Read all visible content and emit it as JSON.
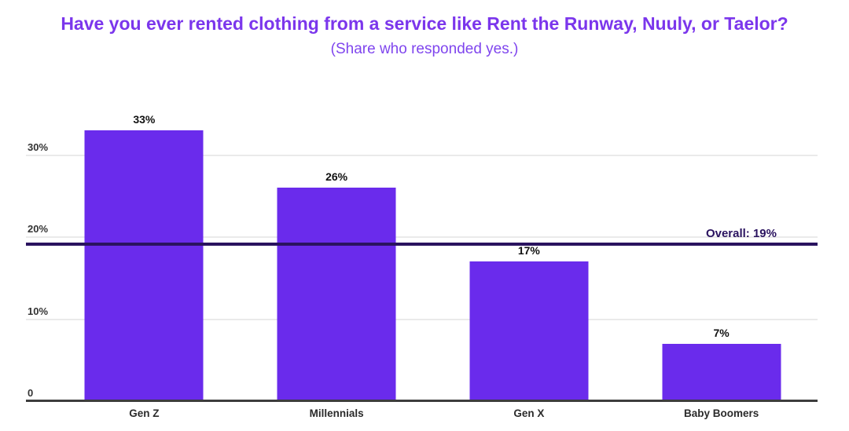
{
  "header": {
    "title": "Have you ever rented clothing from a service like Rent the Runway, Nuuly, or Taelor?",
    "subtitle": "(Share who responded yes.)"
  },
  "colors": {
    "title": "#7B36EC",
    "subtitle": "#7F45EE",
    "bar": "#6A2BEC",
    "reference_line": "#2A135F",
    "gridline": "#EAEAEA",
    "axis": "#3D3D3D",
    "tick_label": "#333333",
    "value_label": "#111111",
    "category_label": "#2B2B2B",
    "background": "#FFFFFF"
  },
  "chart_data": {
    "type": "bar",
    "title": "Have you ever rented clothing from a service like Rent the Runway, Nuuly, or Taelor?",
    "subtitle": "(Share who responded yes.)",
    "categories": [
      "Gen Z",
      "Millennials",
      "Gen X",
      "Baby Boomers"
    ],
    "values": [
      33,
      26,
      17,
      7
    ],
    "value_labels": [
      "33%",
      "26%",
      "17%",
      "7%"
    ],
    "xlabel": "",
    "ylabel": "",
    "ylim": [
      0,
      36
    ],
    "y_ticks": [
      {
        "value": 0,
        "label": "0"
      },
      {
        "value": 10,
        "label": "10%"
      },
      {
        "value": 20,
        "label": "20%"
      },
      {
        "value": 30,
        "label": "30%"
      }
    ],
    "grid": "horizontal",
    "legend": "none",
    "reference_line": {
      "value": 19,
      "label": "Overall: 19%"
    }
  }
}
